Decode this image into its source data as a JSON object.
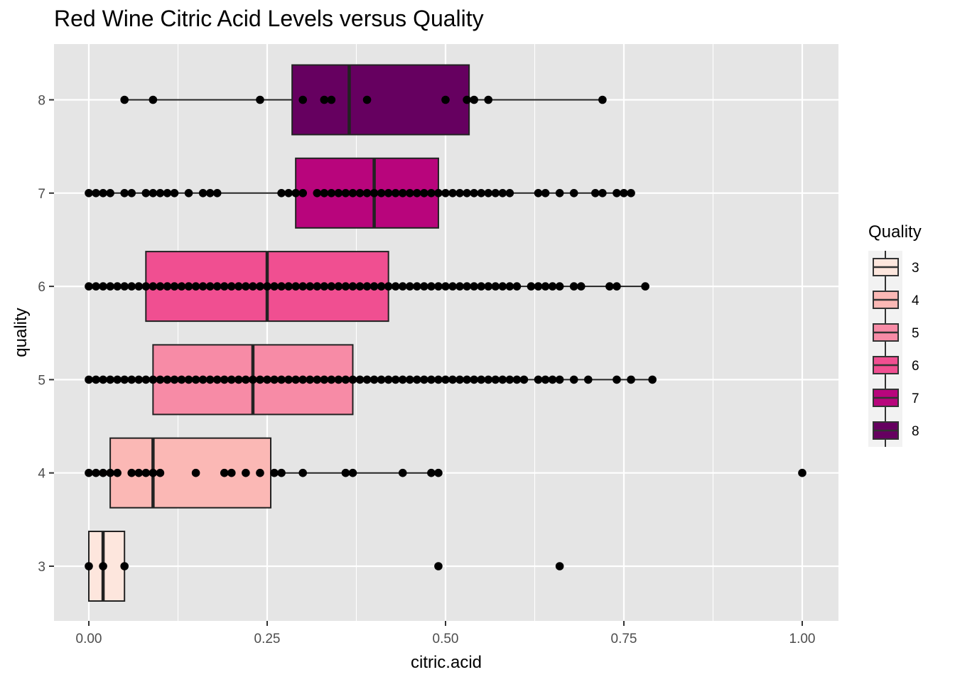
{
  "chart_data": {
    "type": "box",
    "title": "Red Wine Citric Acid Levels versus Quality",
    "xlabel": "citric.acid",
    "ylabel": "quality",
    "xlim": [
      -0.01,
      1.01
    ],
    "x_ticks": [
      0.0,
      0.25,
      0.5,
      0.75,
      1.0
    ],
    "x_tick_labels": [
      "0.00",
      "0.25",
      "0.50",
      "0.75",
      "1.00"
    ],
    "categories": [
      "3",
      "4",
      "5",
      "6",
      "7",
      "8"
    ],
    "legend": {
      "title": "Quality",
      "position": "right",
      "labels": [
        "3",
        "4",
        "5",
        "6",
        "7",
        "8"
      ]
    },
    "grid": true,
    "colors": {
      "panel": "#e5e5e5",
      "grid": "#ffffff",
      "box_outline": "#222222",
      "3": "#fde6dd",
      "4": "#fbb8b5",
      "5": "#f78ba6",
      "6": "#f04f91",
      "7": "#b8057c",
      "8": "#660060"
    },
    "boxes": [
      {
        "quality": "3",
        "min": 0.0,
        "q1": 0.0,
        "median": 0.02,
        "q3": 0.05,
        "max": 0.05,
        "points": [
          0.0,
          0.02,
          0.05,
          0.49,
          0.66
        ]
      },
      {
        "quality": "4",
        "min": 0.0,
        "q1": 0.03,
        "median": 0.09,
        "q3": 0.255,
        "max": 0.49,
        "points": [
          0.0,
          0.01,
          0.02,
          0.03,
          0.04,
          0.06,
          0.07,
          0.08,
          0.09,
          0.1,
          0.15,
          0.19,
          0.2,
          0.22,
          0.24,
          0.26,
          0.27,
          0.3,
          0.36,
          0.37,
          0.44,
          0.48,
          0.49,
          1.0
        ]
      },
      {
        "quality": "5",
        "min": 0.0,
        "q1": 0.09,
        "median": 0.23,
        "q3": 0.37,
        "max": 0.79,
        "points": [
          0.0,
          0.01,
          0.02,
          0.03,
          0.04,
          0.05,
          0.06,
          0.07,
          0.08,
          0.09,
          0.1,
          0.11,
          0.12,
          0.13,
          0.14,
          0.15,
          0.16,
          0.17,
          0.18,
          0.19,
          0.2,
          0.21,
          0.22,
          0.23,
          0.24,
          0.25,
          0.26,
          0.27,
          0.28,
          0.29,
          0.3,
          0.31,
          0.32,
          0.33,
          0.34,
          0.35,
          0.36,
          0.37,
          0.38,
          0.39,
          0.4,
          0.41,
          0.42,
          0.43,
          0.44,
          0.45,
          0.46,
          0.47,
          0.48,
          0.49,
          0.5,
          0.51,
          0.52,
          0.53,
          0.54,
          0.55,
          0.56,
          0.57,
          0.58,
          0.59,
          0.6,
          0.61,
          0.63,
          0.64,
          0.65,
          0.66,
          0.68,
          0.7,
          0.74,
          0.76,
          0.79
        ]
      },
      {
        "quality": "6",
        "min": 0.0,
        "q1": 0.08,
        "median": 0.25,
        "q3": 0.42,
        "max": 0.78,
        "points": [
          0.0,
          0.01,
          0.02,
          0.03,
          0.04,
          0.05,
          0.06,
          0.07,
          0.08,
          0.09,
          0.1,
          0.11,
          0.12,
          0.13,
          0.14,
          0.15,
          0.16,
          0.17,
          0.18,
          0.19,
          0.2,
          0.21,
          0.22,
          0.23,
          0.24,
          0.25,
          0.26,
          0.27,
          0.28,
          0.29,
          0.3,
          0.31,
          0.32,
          0.33,
          0.34,
          0.35,
          0.36,
          0.37,
          0.38,
          0.39,
          0.4,
          0.41,
          0.42,
          0.43,
          0.44,
          0.45,
          0.46,
          0.47,
          0.48,
          0.49,
          0.5,
          0.51,
          0.52,
          0.53,
          0.54,
          0.55,
          0.56,
          0.57,
          0.58,
          0.59,
          0.6,
          0.62,
          0.63,
          0.64,
          0.65,
          0.66,
          0.68,
          0.69,
          0.73,
          0.74,
          0.78
        ]
      },
      {
        "quality": "7",
        "min": 0.0,
        "q1": 0.29,
        "median": 0.4,
        "q3": 0.49,
        "max": 0.76,
        "points": [
          0.0,
          0.01,
          0.02,
          0.03,
          0.05,
          0.06,
          0.08,
          0.09,
          0.1,
          0.11,
          0.12,
          0.14,
          0.16,
          0.17,
          0.18,
          0.27,
          0.28,
          0.29,
          0.3,
          0.32,
          0.33,
          0.34,
          0.35,
          0.36,
          0.37,
          0.38,
          0.39,
          0.4,
          0.41,
          0.42,
          0.43,
          0.44,
          0.45,
          0.46,
          0.47,
          0.48,
          0.49,
          0.5,
          0.51,
          0.52,
          0.53,
          0.54,
          0.55,
          0.56,
          0.57,
          0.58,
          0.59,
          0.63,
          0.64,
          0.66,
          0.68,
          0.71,
          0.72,
          0.74,
          0.75,
          0.76
        ]
      },
      {
        "quality": "8",
        "min": 0.05,
        "q1": 0.285,
        "median": 0.365,
        "q3": 0.533,
        "max": 0.72,
        "points": [
          0.05,
          0.09,
          0.24,
          0.3,
          0.33,
          0.34,
          0.39,
          0.5,
          0.53,
          0.54,
          0.56,
          0.72
        ]
      }
    ]
  }
}
